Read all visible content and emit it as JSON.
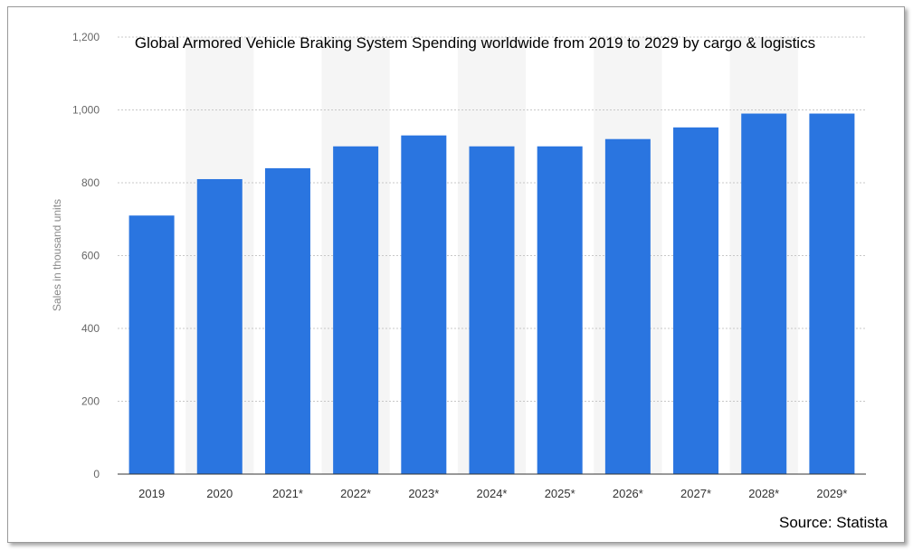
{
  "chart_data": {
    "type": "bar",
    "title": "Global Armored Vehicle Braking System Spending worldwide from 2019 to 2029 by cargo & logistics",
    "xlabel": "",
    "ylabel": "Sales in thousand units",
    "categories": [
      "2019",
      "2020",
      "2021*",
      "2022*",
      "2023*",
      "2024*",
      "2025*",
      "2026*",
      "2027*",
      "2028*",
      "2029*"
    ],
    "values": [
      710,
      810,
      840,
      900,
      930,
      900,
      900,
      920,
      952,
      990,
      990
    ],
    "ylim": [
      0,
      1200
    ],
    "yticks": [
      "0",
      "200",
      "400",
      "600",
      "800",
      "1,000",
      "1,200"
    ],
    "grid": true,
    "bar_color": "#2a75e0",
    "alternating_band_color": "#f5f5f5"
  },
  "source": "Source: Statista"
}
